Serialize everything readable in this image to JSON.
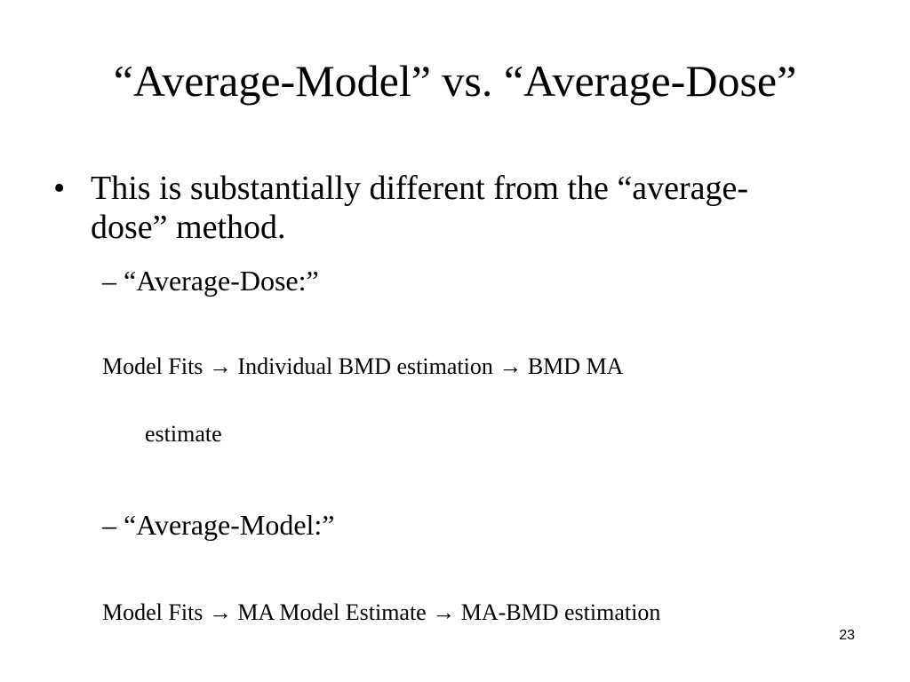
{
  "slide": {
    "title": "“Average-Model” vs. “Average-Dose”",
    "bullet": {
      "marker": "•",
      "text": "This is substantially different from the “average-dose” method."
    },
    "average_dose": {
      "label": "– “Average-Dose:”",
      "flow_line_1": "Model Fits → Individual BMD estimation → BMD MA",
      "flow_line_2": "estimate"
    },
    "average_model": {
      "label": "– “Average-Model:”",
      "flow": "Model Fits → MA Model Estimate → MA-BMD estimation"
    },
    "slide_number": "23"
  }
}
